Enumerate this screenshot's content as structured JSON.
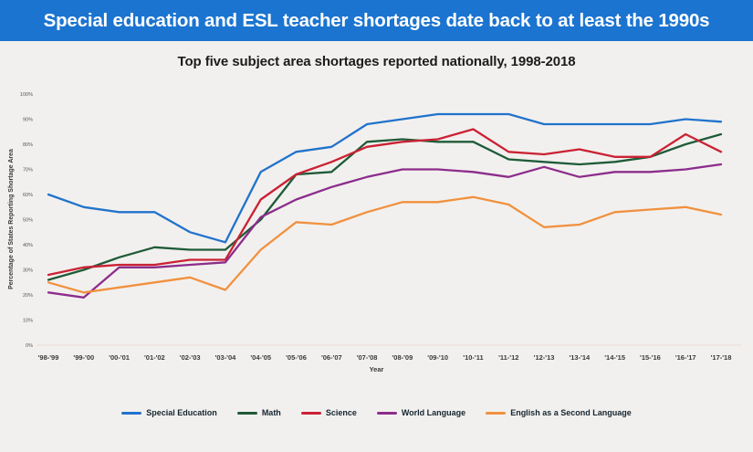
{
  "header": {
    "title": "Special education and ESL teacher shortages date back to at least the 1990s"
  },
  "chart_data": {
    "type": "line",
    "title": "Top five subject area shortages reported nationally, 1998-2018",
    "xlabel": "Year",
    "ylabel": "Percentage of States Reporting Shortage Area",
    "ylim": [
      0,
      100
    ],
    "ytick_step": 10,
    "yticks": [
      "0%",
      "10%",
      "20%",
      "30%",
      "40%",
      "50%",
      "60%",
      "70%",
      "80%",
      "90%",
      "100%"
    ],
    "grid": false,
    "legend_position": "bottom",
    "categories": [
      "'98-'99",
      "'99-'00",
      "'00-'01",
      "'01-'02",
      "'02-'03",
      "'03-'04",
      "'04-'05",
      "'05-'06",
      "'06-'07",
      "'07-'08",
      "'08-'09",
      "'09-'10",
      "'10-'11",
      "'11-'12",
      "'12-'13",
      "'13-'14",
      "'14-'15",
      "'15-'16",
      "'16-'17",
      "'17-'18"
    ],
    "series": [
      {
        "name": "Special Education",
        "color": "#2173cc",
        "values": [
          60,
          55,
          53,
          53,
          45,
          41,
          69,
          77,
          79,
          88,
          90,
          92,
          92,
          92,
          88,
          88,
          88,
          88,
          90,
          89
        ]
      },
      {
        "name": "Math",
        "color": "#1e5b38",
        "values": [
          26,
          30,
          35,
          39,
          38,
          38,
          50,
          68,
          69,
          81,
          82,
          81,
          81,
          74,
          73,
          72,
          73,
          75,
          80,
          84
        ]
      },
      {
        "name": "Science",
        "color": "#cb2134",
        "values": [
          28,
          31,
          32,
          32,
          34,
          34,
          58,
          68,
          73,
          79,
          81,
          82,
          86,
          77,
          76,
          78,
          75,
          75,
          84,
          77
        ]
      },
      {
        "name": "World Language",
        "color": "#8c2d8c",
        "values": [
          21,
          19,
          31,
          31,
          32,
          33,
          51,
          58,
          63,
          67,
          70,
          70,
          69,
          67,
          71,
          67,
          69,
          69,
          70,
          72
        ]
      },
      {
        "name": "English as a Second Language",
        "color": "#f0913f",
        "values": [
          25,
          21,
          23,
          25,
          27,
          22,
          38,
          49,
          48,
          53,
          57,
          57,
          59,
          56,
          47,
          48,
          53,
          54,
          55,
          52
        ]
      }
    ]
  },
  "colors": {
    "header_bg": "#1b74d0",
    "header_text": "#ffffff",
    "page_bg": "#f2f0ee",
    "title_text": "#1c1c1c",
    "axis_text": "#3a3a3a",
    "tick_text": "#555555",
    "baseline": "#e9dad2",
    "legend_text": "#152530"
  }
}
